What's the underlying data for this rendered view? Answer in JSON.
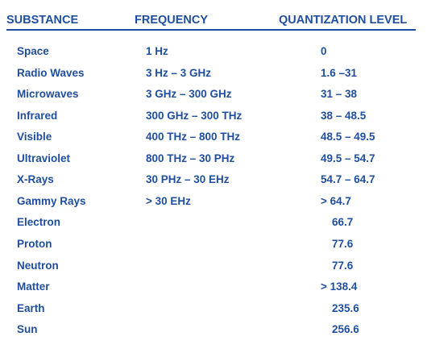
{
  "headers": {
    "substance": "SUBSTANCE",
    "frequency": "FREQUENCY",
    "quantization": "QUANTIZATION LEVEL"
  },
  "rows": [
    {
      "substance": "Space",
      "frequency": "1 Hz",
      "level": "0"
    },
    {
      "substance": "Radio Waves",
      "frequency": "3 Hz – 3 GHz",
      "level": "1.6 –31"
    },
    {
      "substance": "Microwaves",
      "frequency": "3 GHz – 300 GHz",
      "level": "31 – 38"
    },
    {
      "substance": "Infrared",
      "frequency": "300 GHz – 300 THz",
      "level": "38 – 48.5"
    },
    {
      "substance": "Visible",
      "frequency": "400 THz – 800 THz",
      "level": "48.5 – 49.5"
    },
    {
      "substance": "Ultraviolet",
      "frequency": "800 THz – 30 PHz",
      "level": "49.5 – 54.7"
    },
    {
      "substance": "X-Rays",
      "frequency": "30 PHz – 30 EHz",
      "level": "54.7 – 64.7"
    },
    {
      "substance": "Gammy Rays",
      "frequency": "> 30 EHz",
      "level": "> 64.7"
    },
    {
      "substance": "Electron",
      "frequency": "",
      "level": "66.7"
    },
    {
      "substance": "Proton",
      "frequency": "",
      "level": "77.6"
    },
    {
      "substance": "Neutron",
      "frequency": "",
      "level": "77.6"
    },
    {
      "substance": "Matter",
      "frequency": "",
      "level": "> 138.4"
    },
    {
      "substance": "Earth",
      "frequency": "",
      "level": "235.6"
    },
    {
      "substance": "Sun",
      "frequency": "",
      "level": "256.6"
    }
  ]
}
